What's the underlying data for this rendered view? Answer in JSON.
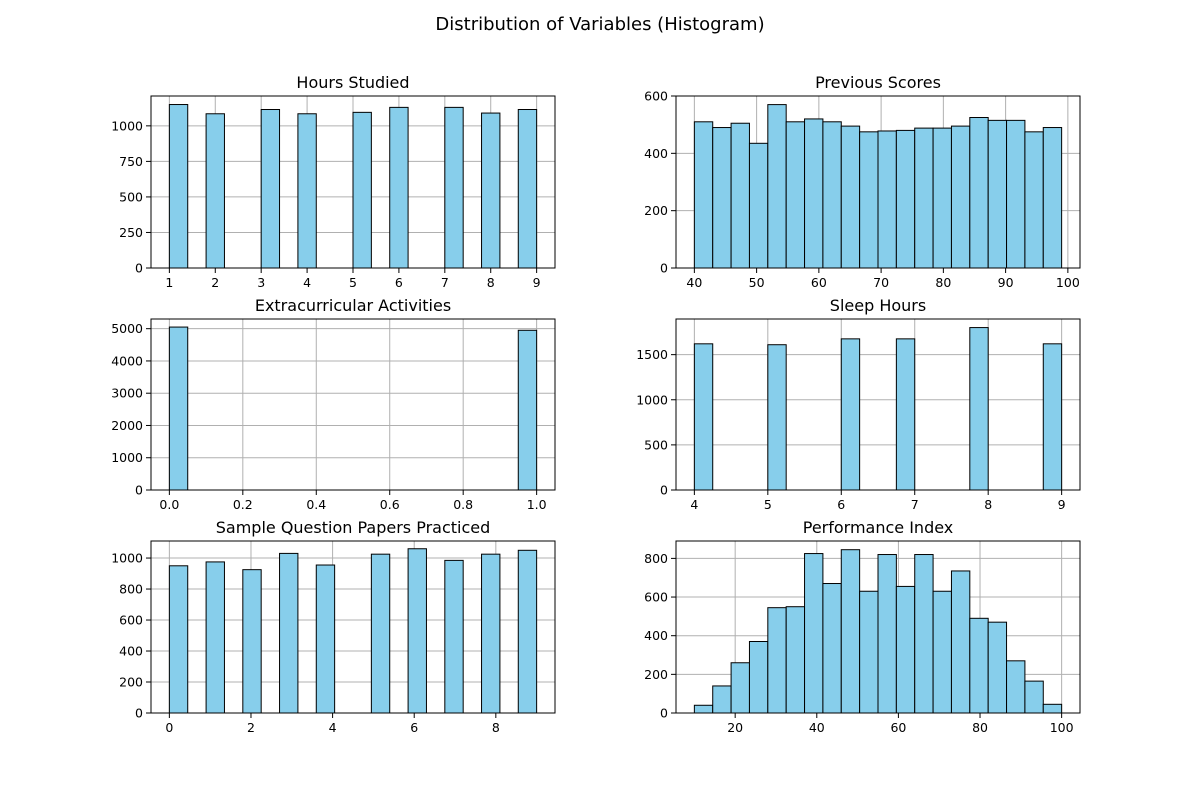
{
  "figure": {
    "title": "Distribution of Variables (Histogram)",
    "bar_color": "#87ceeb",
    "edge_color": "#000000",
    "grid": true
  },
  "chart_data": [
    {
      "type": "bar",
      "title": "Hours Studied",
      "xlabel": "",
      "ylabel": "",
      "bins": 20,
      "bin_range": [
        1,
        9
      ],
      "counts": [
        1150,
        0,
        1085,
        0,
        0,
        1115,
        0,
        1085,
        0,
        0,
        1095,
        0,
        1130,
        0,
        0,
        1130,
        0,
        1090,
        0,
        1115
      ],
      "xlim": [
        0.6,
        9.4
      ],
      "ylim": [
        0,
        1210
      ],
      "xticks": [
        1,
        2,
        3,
        4,
        5,
        6,
        7,
        8,
        9
      ],
      "xtick_labels": [
        "1",
        "2",
        "3",
        "4",
        "5",
        "6",
        "7",
        "8",
        "9"
      ],
      "yticks": [
        0,
        250,
        500,
        750,
        1000
      ],
      "ytick_labels": [
        "0",
        "250",
        "500",
        "750",
        "1000"
      ]
    },
    {
      "type": "bar",
      "title": "Previous Scores",
      "xlabel": "",
      "ylabel": "",
      "bins": 20,
      "bin_range": [
        40,
        99
      ],
      "counts": [
        510,
        490,
        505,
        435,
        570,
        510,
        520,
        510,
        495,
        475,
        478,
        480,
        488,
        488,
        495,
        525,
        515,
        515,
        475,
        490
      ],
      "xlim": [
        37.05,
        101.95
      ],
      "ylim": [
        0,
        600
      ],
      "xticks": [
        40,
        50,
        60,
        70,
        80,
        90,
        100
      ],
      "xtick_labels": [
        "40",
        "50",
        "60",
        "70",
        "80",
        "90",
        "100"
      ],
      "yticks": [
        0,
        200,
        400,
        600
      ],
      "ytick_labels": [
        "0",
        "200",
        "400",
        "600"
      ]
    },
    {
      "type": "bar",
      "title": "Extracurricular Activities",
      "xlabel": "",
      "ylabel": "",
      "bins": 20,
      "bin_range": [
        0,
        1
      ],
      "counts": [
        5050,
        0,
        0,
        0,
        0,
        0,
        0,
        0,
        0,
        0,
        0,
        0,
        0,
        0,
        0,
        0,
        0,
        0,
        0,
        4950
      ],
      "xlim": [
        -0.05,
        1.05
      ],
      "ylim": [
        0,
        5300
      ],
      "xticks": [
        0,
        0.2,
        0.4,
        0.6,
        0.8,
        1.0
      ],
      "xtick_labels": [
        "0.0",
        "0.2",
        "0.4",
        "0.6",
        "0.8",
        "1.0"
      ],
      "yticks": [
        0,
        1000,
        2000,
        3000,
        4000,
        5000
      ],
      "ytick_labels": [
        "0",
        "1000",
        "2000",
        "3000",
        "4000",
        "5000"
      ]
    },
    {
      "type": "bar",
      "title": "Sleep Hours",
      "xlabel": "",
      "ylabel": "",
      "bins": 20,
      "bin_range": [
        4,
        9
      ],
      "counts": [
        1620,
        0,
        0,
        0,
        1610,
        0,
        0,
        0,
        1675,
        0,
        0,
        1675,
        0,
        0,
        0,
        1800,
        0,
        0,
        0,
        1620
      ],
      "xlim": [
        3.75,
        9.25
      ],
      "ylim": [
        0,
        1895
      ],
      "xticks": [
        4,
        5,
        6,
        7,
        8,
        9
      ],
      "xtick_labels": [
        "4",
        "5",
        "6",
        "7",
        "8",
        "9"
      ],
      "yticks": [
        0,
        500,
        1000,
        1500
      ],
      "ytick_labels": [
        "0",
        "500",
        "1000",
        "1500"
      ]
    },
    {
      "type": "bar",
      "title": "Sample Question Papers Practiced",
      "xlabel": "",
      "ylabel": "",
      "bins": 20,
      "bin_range": [
        0,
        9
      ],
      "counts": [
        950,
        0,
        975,
        0,
        925,
        0,
        1030,
        0,
        955,
        0,
        0,
        1025,
        0,
        1060,
        0,
        985,
        0,
        1025,
        0,
        1050
      ],
      "xlim": [
        -0.45,
        9.45
      ],
      "ylim": [
        0,
        1110
      ],
      "xticks": [
        0,
        2,
        4,
        6,
        8
      ],
      "xtick_labels": [
        "0",
        "2",
        "4",
        "6",
        "8"
      ],
      "yticks": [
        0,
        200,
        400,
        600,
        800,
        1000
      ],
      "ytick_labels": [
        "0",
        "200",
        "400",
        "600",
        "800",
        "1000"
      ]
    },
    {
      "type": "bar",
      "title": "Performance Index",
      "xlabel": "",
      "ylabel": "",
      "bins": 20,
      "bin_range": [
        10,
        100
      ],
      "counts": [
        40,
        140,
        260,
        370,
        545,
        550,
        825,
        670,
        845,
        630,
        820,
        655,
        820,
        630,
        735,
        490,
        470,
        270,
        165,
        45
      ],
      "xlim": [
        5.5,
        104.5
      ],
      "ylim": [
        0,
        890
      ],
      "xticks": [
        20,
        40,
        60,
        80,
        100
      ],
      "xtick_labels": [
        "20",
        "40",
        "60",
        "80",
        "100"
      ],
      "yticks": [
        0,
        200,
        400,
        600,
        800
      ],
      "ytick_labels": [
        "0",
        "200",
        "400",
        "600",
        "800"
      ]
    }
  ]
}
